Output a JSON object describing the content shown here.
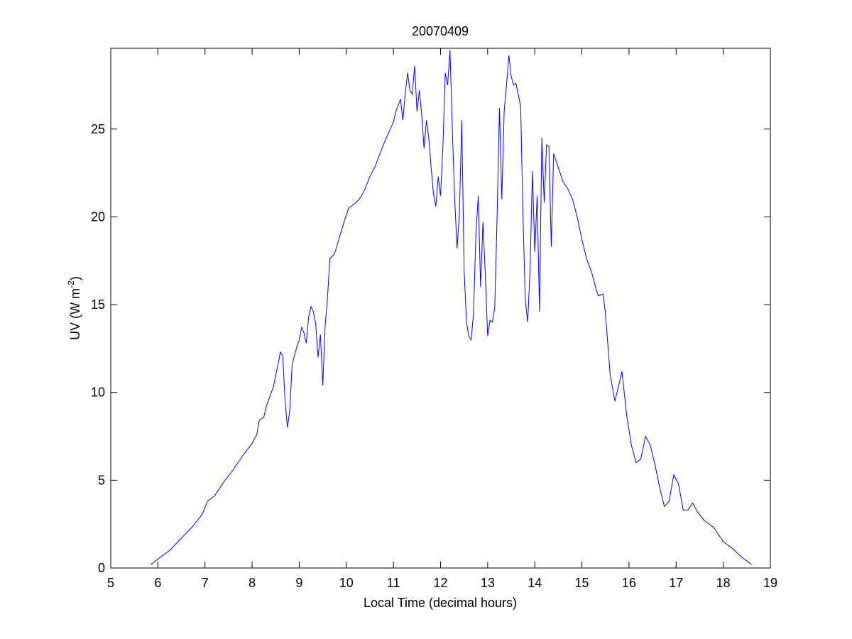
{
  "chart_data": {
    "type": "line",
    "title": "20070409",
    "x_label": "Local Time (decimal hours)",
    "y_label": {
      "text": "UV (W m",
      "superscript": "-2",
      "suffix": ")"
    },
    "xlim": [
      5,
      19
    ],
    "xticks": [
      5,
      6,
      7,
      8,
      9,
      10,
      11,
      12,
      13,
      14,
      15,
      16,
      17,
      18,
      19
    ],
    "ylim": [
      0,
      29.6
    ],
    "yticks": [
      0,
      5,
      10,
      15,
      20,
      25
    ],
    "grid": false,
    "series": [
      {
        "color": "#0000ff",
        "x": [
          5.85,
          6.0,
          6.25,
          6.5,
          6.75,
          6.95,
          7.05,
          7.2,
          7.4,
          7.6,
          7.8,
          8.0,
          8.1,
          8.15,
          8.25,
          8.3,
          8.45,
          8.55,
          8.6,
          8.65,
          8.7,
          8.75,
          8.8,
          8.85,
          8.95,
          9.0,
          9.05,
          9.1,
          9.15,
          9.2,
          9.25,
          9.3,
          9.35,
          9.4,
          9.45,
          9.5,
          9.55,
          9.6,
          9.65,
          9.75,
          9.85,
          9.95,
          10.05,
          10.2,
          10.3,
          10.4,
          10.5,
          10.6,
          10.7,
          10.8,
          10.9,
          11.0,
          11.05,
          11.15,
          11.2,
          11.25,
          11.3,
          11.35,
          11.4,
          11.45,
          11.5,
          11.55,
          11.6,
          11.65,
          11.7,
          11.75,
          11.8,
          11.85,
          11.9,
          11.95,
          12.0,
          12.05,
          12.1,
          12.15,
          12.2,
          12.25,
          12.3,
          12.35,
          12.4,
          12.45,
          12.5,
          12.55,
          12.6,
          12.65,
          12.7,
          12.75,
          12.8,
          12.85,
          12.9,
          12.95,
          13.0,
          13.05,
          13.1,
          13.15,
          13.2,
          13.25,
          13.3,
          13.35,
          13.4,
          13.45,
          13.5,
          13.55,
          13.6,
          13.7,
          13.75,
          13.8,
          13.85,
          13.9,
          13.95,
          14.0,
          14.05,
          14.1,
          14.15,
          14.2,
          14.25,
          14.3,
          14.35,
          14.4,
          14.5,
          14.6,
          14.7,
          14.8,
          14.9,
          15.0,
          15.1,
          15.2,
          15.3,
          15.35,
          15.45,
          15.5,
          15.6,
          15.7,
          15.8,
          15.85,
          15.95,
          16.05,
          16.15,
          16.25,
          16.35,
          16.45,
          16.55,
          16.65,
          16.75,
          16.85,
          16.95,
          17.05,
          17.15,
          17.25,
          17.35,
          17.45,
          17.6,
          17.8,
          18.0,
          18.2,
          18.4,
          18.6
        ],
        "values": [
          0.2,
          0.5,
          1.0,
          1.7,
          2.4,
          3.1,
          3.8,
          4.1,
          4.9,
          5.6,
          6.4,
          7.1,
          7.6,
          8.4,
          8.6,
          9.2,
          10.3,
          11.6,
          12.3,
          12.1,
          9.5,
          8.0,
          9.0,
          11.6,
          12.6,
          13.0,
          13.7,
          13.4,
          12.8,
          14.3,
          14.9,
          14.6,
          13.9,
          12.0,
          13.3,
          10.4,
          13.8,
          15.4,
          17.6,
          17.9,
          18.8,
          19.7,
          20.5,
          20.8,
          21.1,
          21.6,
          22.3,
          22.8,
          23.5,
          24.2,
          24.8,
          25.4,
          26.0,
          26.7,
          25.5,
          27.0,
          28.2,
          27.2,
          27.0,
          28.6,
          26.0,
          27.2,
          25.8,
          23.9,
          25.5,
          24.5,
          22.8,
          21.3,
          20.6,
          22.3,
          21.2,
          24.0,
          28.2,
          27.5,
          29.5,
          25.0,
          21.0,
          18.2,
          20.2,
          25.5,
          17.0,
          14.0,
          13.2,
          13.0,
          14.5,
          19.0,
          21.2,
          16.0,
          19.7,
          16.7,
          13.2,
          14.1,
          14.0,
          14.8,
          20.0,
          26.2,
          21.0,
          26.0,
          27.5,
          29.2,
          28.0,
          27.5,
          27.6,
          26.3,
          20.0,
          15.2,
          14.0,
          17.0,
          22.6,
          18.0,
          21.2,
          14.6,
          24.5,
          20.8,
          24.1,
          24.0,
          18.3,
          23.6,
          22.8,
          22.0,
          21.6,
          21.0,
          20.0,
          18.7,
          17.6,
          16.9,
          15.9,
          15.5,
          15.6,
          14.5,
          11.0,
          9.5,
          10.6,
          11.2,
          8.7,
          7.0,
          6.0,
          6.2,
          7.5,
          7.0,
          5.9,
          4.6,
          3.5,
          3.8,
          5.3,
          4.8,
          3.3,
          3.3,
          3.7,
          3.2,
          2.7,
          2.3,
          1.5,
          1.1,
          0.6,
          0.2
        ]
      }
    ]
  }
}
